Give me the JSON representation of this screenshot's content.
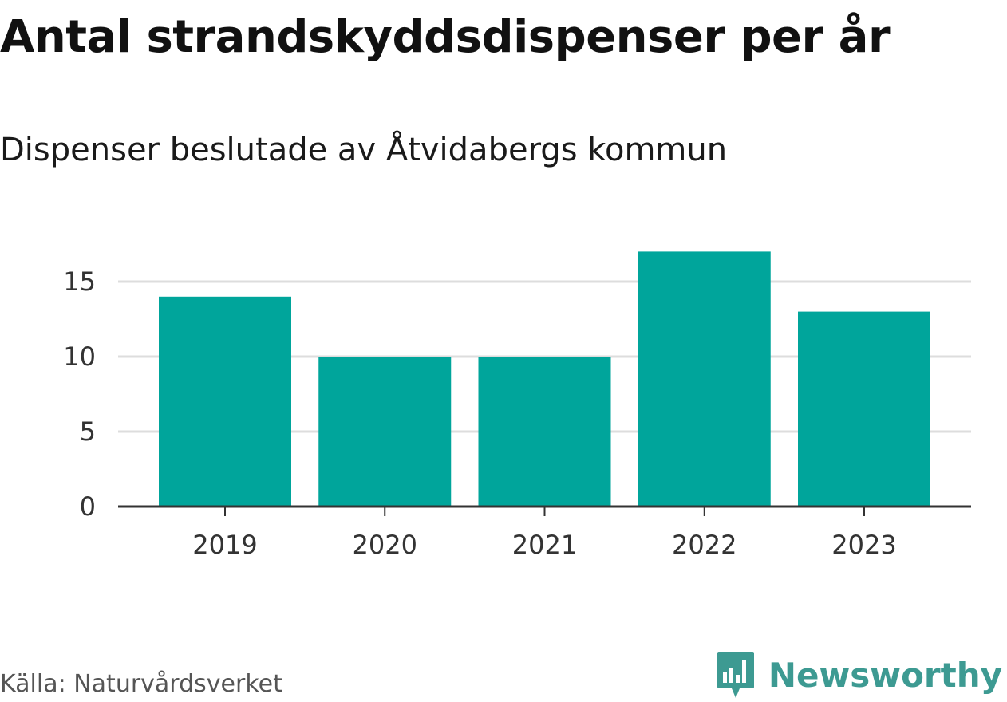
{
  "title": "Antal strandskyddsdispenser per år",
  "subtitle": "Dispenser beslutade av Åtvidabergs kommun",
  "source": "Källa: Naturvårdsverket",
  "brand": {
    "name": "Newsworthy",
    "logo_icon": "bar-chart-speech-bubble-icon"
  },
  "colors": {
    "bar": "#00a59b",
    "grid": "#dddddd",
    "axis": "#333333",
    "tick_text": "#333333",
    "brand": "#3d9a92"
  },
  "chart_data": {
    "type": "bar",
    "title": "Antal strandskyddsdispenser per år",
    "subtitle": "Dispenser beslutade av Åtvidabergs kommun",
    "categories": [
      "2019",
      "2020",
      "2021",
      "2022",
      "2023"
    ],
    "values": [
      14,
      10,
      10,
      17,
      13
    ],
    "xlabel": "",
    "ylabel": "",
    "ylim": [
      0,
      17
    ],
    "yticks": [
      0,
      5,
      10,
      15
    ],
    "grid": true,
    "legend": "none"
  }
}
